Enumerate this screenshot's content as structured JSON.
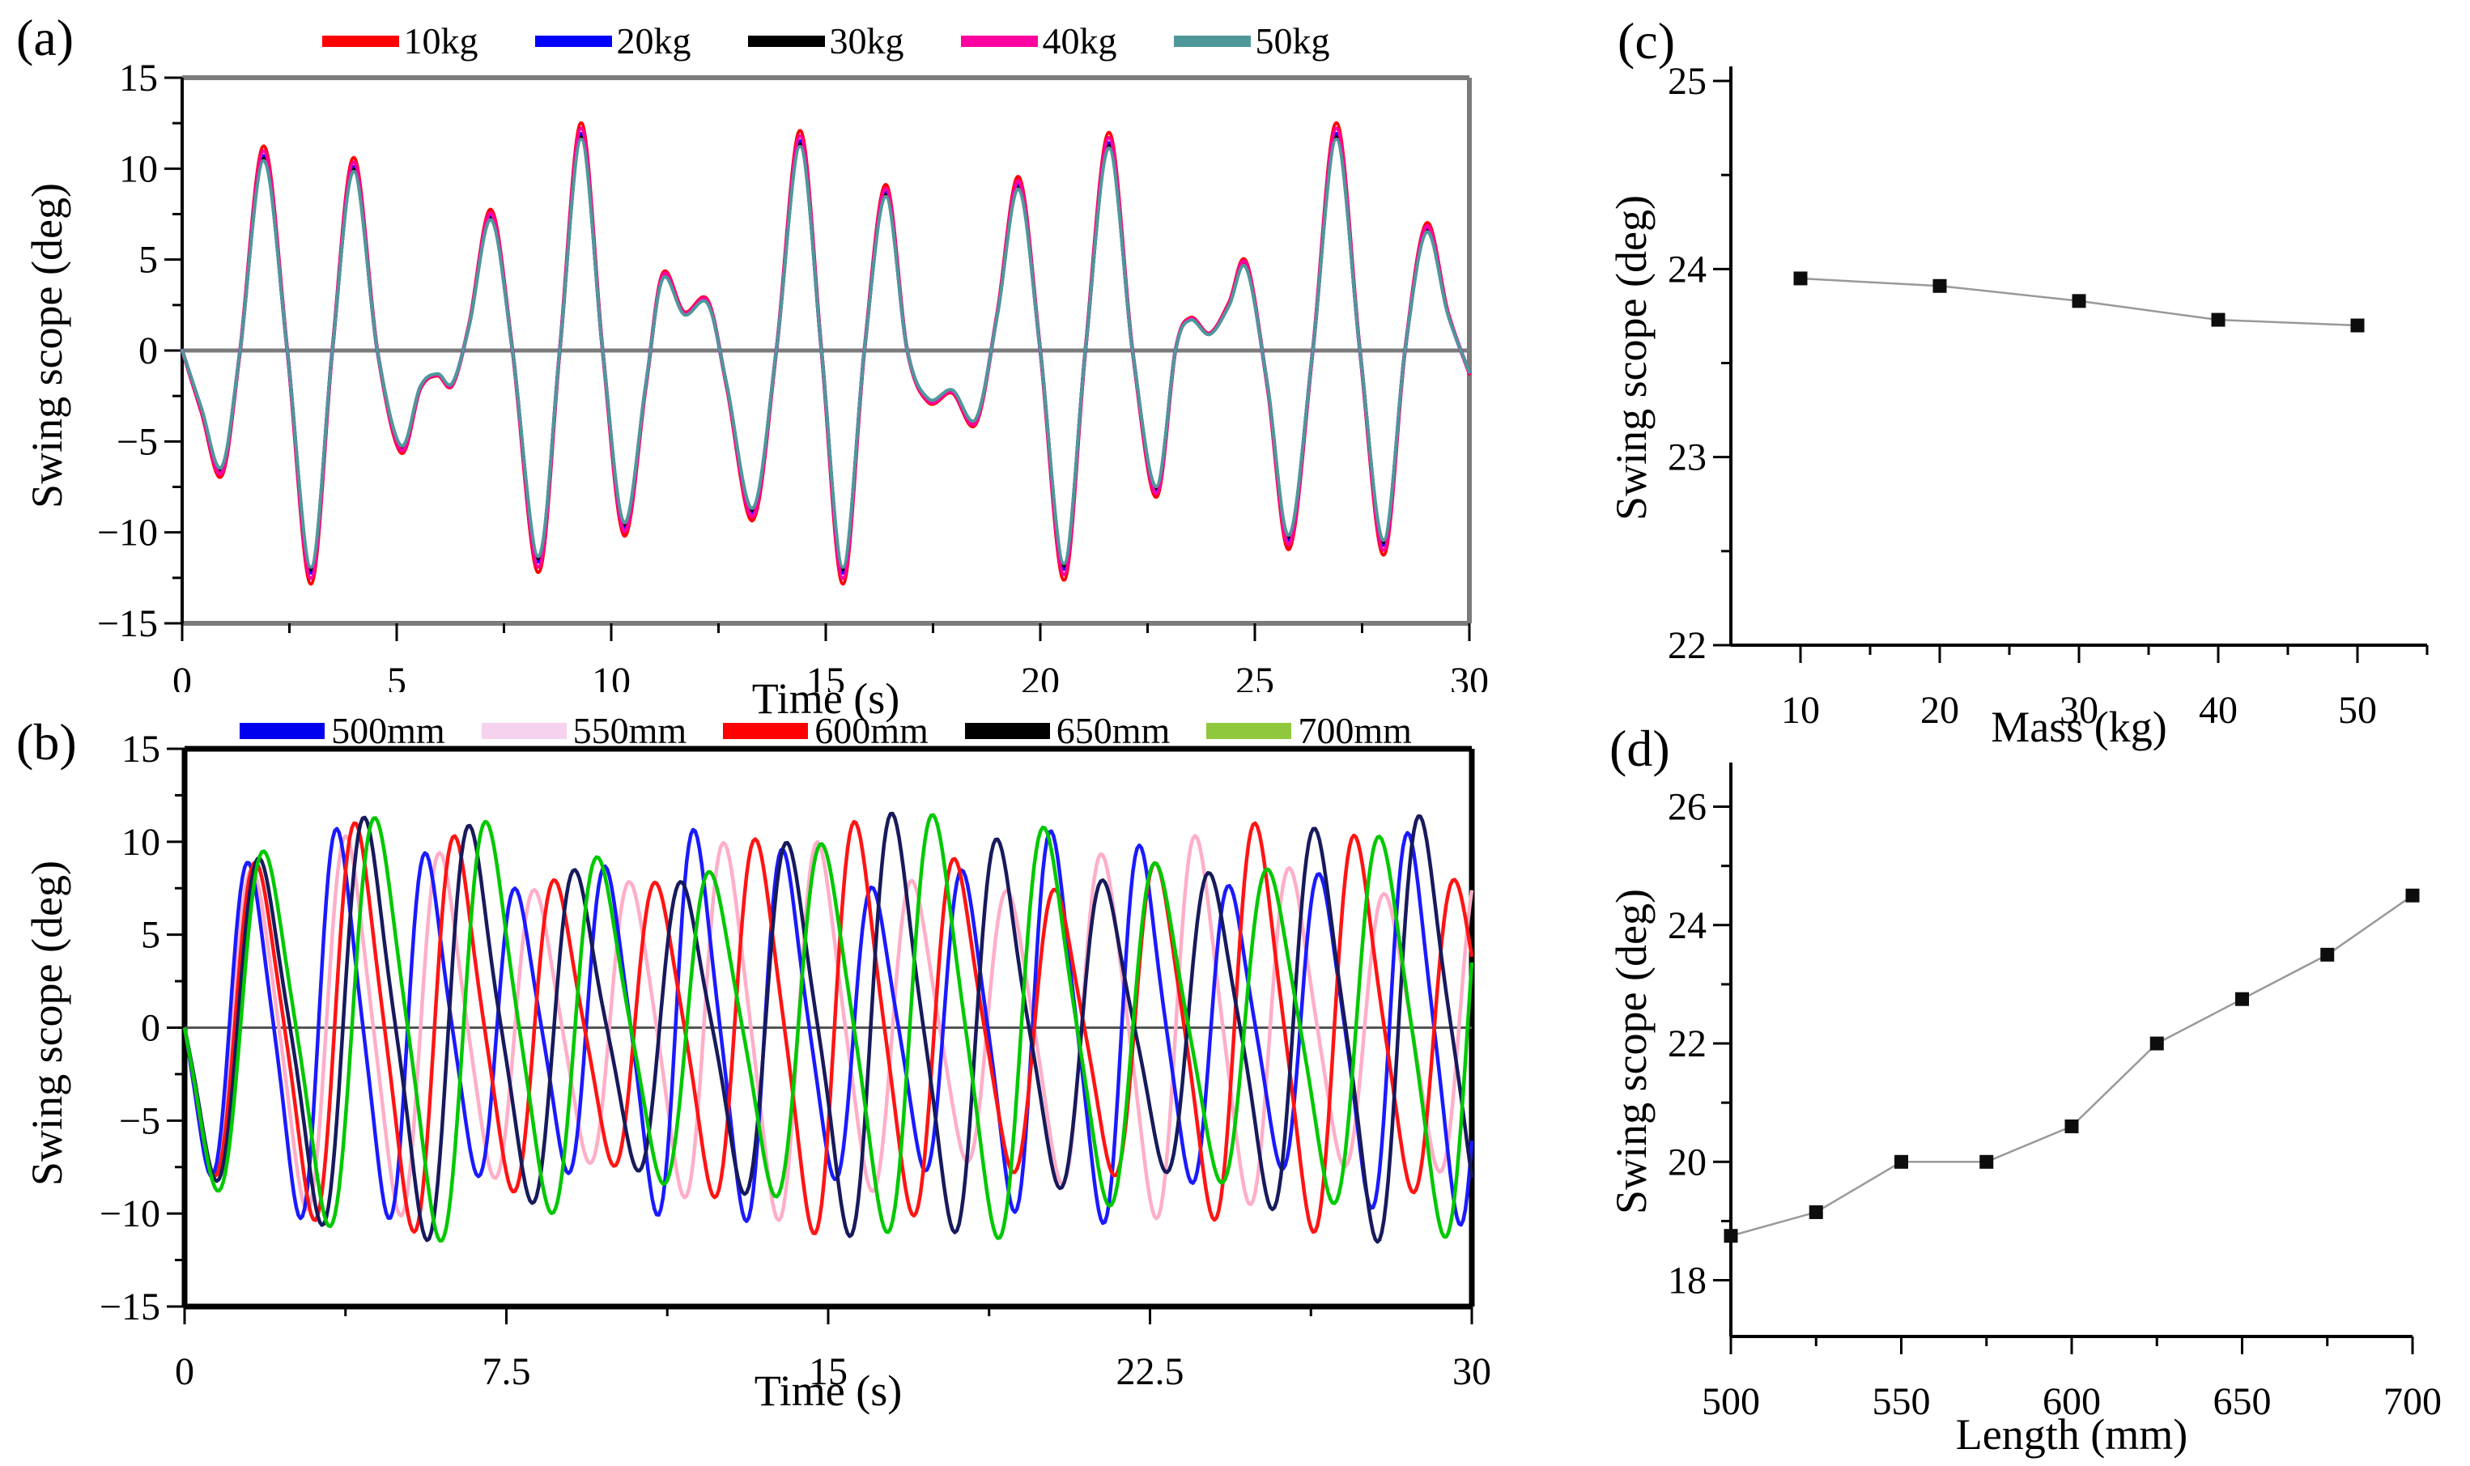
{
  "figure_type": "4-panel pendulum swing simulation figure",
  "chart_data": [
    {
      "id": "a",
      "type": "line",
      "panel_label": "(a)",
      "xlabel": "Time (s)",
      "ylabel": "Swing scope (deg)",
      "xlim": [
        0,
        30
      ],
      "ylim": [
        -15,
        15
      ],
      "grid": false,
      "legend_position": "top",
      "frame": {
        "type": "box",
        "color": "#7b7b7b",
        "width": 6,
        "left_color": "#000000",
        "left_width": 4
      },
      "zero_line": {
        "color": "#7b7b7b",
        "width": 5
      },
      "xticks": [
        {
          "v": 0,
          "l": "0"
        },
        {
          "v": 5,
          "l": "5"
        },
        {
          "v": 10,
          "l": "10"
        },
        {
          "v": 15,
          "l": "15"
        },
        {
          "v": 20,
          "l": "20"
        },
        {
          "v": 25,
          "l": "25"
        },
        {
          "v": 30,
          "l": "30"
        }
      ],
      "xminor": [
        2.5,
        7.5,
        12.5,
        17.5,
        22.5,
        27.5
      ],
      "yticks": [
        {
          "v": 15,
          "l": "15"
        },
        {
          "v": 10,
          "l": "10"
        },
        {
          "v": 5,
          "l": "5"
        },
        {
          "v": 0,
          "l": "0"
        },
        {
          "v": -5,
          "l": "−5"
        },
        {
          "v": -10,
          "l": "−10"
        },
        {
          "v": -15,
          "l": "−15"
        }
      ],
      "yminor": [
        12.5,
        7.5,
        2.5,
        -2.5,
        -7.5,
        -12.5
      ],
      "legend": [
        {
          "label": "10kg",
          "color": "#ff0000"
        },
        {
          "label": "20kg",
          "color": "#0000ff"
        },
        {
          "label": "30kg",
          "color": "#000000"
        },
        {
          "label": "40kg",
          "color": "#ff00a0"
        },
        {
          "label": "50kg",
          "color": "#4f989a"
        }
      ],
      "note": "All five mass curves almost coincide; each series scales the shared waveform slightly.",
      "series": [
        {
          "name": "10kg",
          "color": "#ff0000",
          "scale": 1.06,
          "width": 4.5
        },
        {
          "name": "20kg",
          "color": "#0000ff",
          "scale": 1.01,
          "width": 4.5
        },
        {
          "name": "30kg",
          "color": "#000000",
          "scale": 0.995,
          "width": 4
        },
        {
          "name": "40kg",
          "color": "#ff00a0",
          "scale": 1.035,
          "width": 4.5
        },
        {
          "name": "50kg",
          "color": "#4f989a",
          "scale": 0.985,
          "width": 4
        }
      ],
      "waveform": [
        [
          0,
          0
        ],
        [
          0.45,
          -3.2
        ],
        [
          0.92,
          -6.5
        ],
        [
          1.35,
          0
        ],
        [
          1.9,
          10.6
        ],
        [
          2.45,
          0
        ],
        [
          3.0,
          -12.1
        ],
        [
          3.5,
          0
        ],
        [
          4.0,
          10.0
        ],
        [
          4.55,
          0
        ],
        [
          5.1,
          -5.3
        ],
        [
          5.55,
          -2.0
        ],
        [
          5.95,
          -1.3
        ],
        [
          6.3,
          -1.8
        ],
        [
          6.7,
          1.5
        ],
        [
          7.2,
          7.3
        ],
        [
          7.7,
          0
        ],
        [
          8.3,
          -11.5
        ],
        [
          8.8,
          0
        ],
        [
          9.3,
          11.8
        ],
        [
          9.8,
          0
        ],
        [
          10.3,
          -9.6
        ],
        [
          10.8,
          -2.0
        ],
        [
          11.2,
          4.0
        ],
        [
          11.7,
          2.0
        ],
        [
          12.25,
          2.6
        ],
        [
          12.7,
          -2.0
        ],
        [
          13.3,
          -8.8
        ],
        [
          13.85,
          0
        ],
        [
          14.4,
          11.4
        ],
        [
          14.9,
          0
        ],
        [
          15.4,
          -12.1
        ],
        [
          15.9,
          0
        ],
        [
          16.4,
          8.6
        ],
        [
          16.9,
          0
        ],
        [
          17.4,
          -2.7
        ],
        [
          17.95,
          -2.2
        ],
        [
          18.5,
          -3.8
        ],
        [
          19.0,
          2.0
        ],
        [
          19.5,
          9.0
        ],
        [
          20.0,
          0
        ],
        [
          20.55,
          -11.9
        ],
        [
          21.05,
          0
        ],
        [
          21.6,
          11.3
        ],
        [
          22.15,
          0
        ],
        [
          22.7,
          -7.6
        ],
        [
          23.15,
          0
        ],
        [
          23.5,
          1.7
        ],
        [
          23.95,
          0.9
        ],
        [
          24.4,
          2.5
        ],
        [
          24.8,
          4.6
        ],
        [
          25.3,
          -2.0
        ],
        [
          25.8,
          -10.3
        ],
        [
          26.35,
          0
        ],
        [
          26.9,
          11.8
        ],
        [
          27.45,
          0
        ],
        [
          28.0,
          -10.6
        ],
        [
          28.5,
          0
        ],
        [
          29.0,
          6.6
        ],
        [
          29.5,
          2.0
        ],
        [
          30,
          -1.2
        ]
      ]
    },
    {
      "id": "b",
      "type": "line",
      "panel_label": "(b)",
      "xlabel": "Time (s)",
      "ylabel": "Swing scope (deg)",
      "xlim": [
        0,
        30
      ],
      "ylim": [
        -15,
        15
      ],
      "grid": false,
      "legend_position": "top",
      "frame": {
        "type": "box",
        "color": "#000000",
        "width": 7
      },
      "zero_line": {
        "color": "#555555",
        "width": 3
      },
      "xticks": [
        {
          "v": 0,
          "l": "0"
        },
        {
          "v": 7.5,
          "l": "7.5"
        },
        {
          "v": 15,
          "l": "15"
        },
        {
          "v": 22.5,
          "l": "22.5"
        },
        {
          "v": 30,
          "l": "30"
        }
      ],
      "xminor": [
        3.75,
        11.25,
        18.75,
        26.25
      ],
      "yticks": [
        {
          "v": 15,
          "l": "15"
        },
        {
          "v": 10,
          "l": "10"
        },
        {
          "v": 5,
          "l": "5"
        },
        {
          "v": 0,
          "l": "0"
        },
        {
          "v": -5,
          "l": "−5"
        },
        {
          "v": -10,
          "l": "−10"
        },
        {
          "v": -15,
          "l": "−15"
        }
      ],
      "yminor": [
        12.5,
        7.5,
        2.5,
        -2.5,
        -7.5,
        -12.5
      ],
      "legend": [
        {
          "label": "500mm",
          "color": "#0000ee"
        },
        {
          "label": "550mm",
          "color": "#f6d2ef"
        },
        {
          "label": "600mm",
          "color": "#ff0000"
        },
        {
          "label": "650mm",
          "color": "#000000"
        },
        {
          "label": "700mm",
          "color": "#8fc83c"
        }
      ],
      "note": "Five oscillations of differing period/phase; synthesized as amplitude-modulated sinusoids y=A(1+d sin(2πt/Tm−1.2))(sin(2πt/T+π)+h2 sin(4πt/T)).",
      "series": [
        {
          "name": "550mm",
          "color": "#ffaec8",
          "T": 2.2,
          "A": 8.4,
          "Tm": 9.5,
          "d": 0.18,
          "h2": 0.16,
          "width": 4.5
        },
        {
          "name": "500mm",
          "color": "#1a1aff",
          "T": 2.08,
          "A": 8.6,
          "Tm": 8.5,
          "d": 0.18,
          "h2": 0.18,
          "width": 4.5
        },
        {
          "name": "600mm",
          "color": "#ff1414",
          "T": 2.33,
          "A": 8.8,
          "Tm": 10.5,
          "d": 0.2,
          "h2": 0.18,
          "width": 4.5
        },
        {
          "name": "650mm",
          "color": "#171a5c",
          "T": 2.46,
          "A": 9.0,
          "Tm": 11.5,
          "d": 0.2,
          "h2": 0.2,
          "width": 4.5
        },
        {
          "name": "700mm",
          "color": "#00c800",
          "T": 2.6,
          "A": 9.4,
          "Tm": 12.5,
          "d": 0.16,
          "h2": 0.18,
          "width": 4.5
        }
      ]
    },
    {
      "id": "c",
      "type": "scatter",
      "panel_label": "(c)",
      "xlabel": "Mass (kg)",
      "ylabel": "Swing scope (deg)",
      "xlim": [
        5,
        55
      ],
      "ylim": [
        22,
        25
      ],
      "grid": false,
      "frame": {
        "type": "L",
        "color": "#000000",
        "width": 4
      },
      "marker": {
        "shape": "square",
        "size": 17,
        "color": "#0d0d0d"
      },
      "line": {
        "color": "#999999",
        "width": 2.5
      },
      "xticks": [
        {
          "v": 10,
          "l": "10"
        },
        {
          "v": 20,
          "l": "20"
        },
        {
          "v": 30,
          "l": "30"
        },
        {
          "v": 40,
          "l": "40"
        },
        {
          "v": 50,
          "l": "50"
        }
      ],
      "xminor": [
        15,
        25,
        35,
        45,
        55
      ],
      "yticks": [
        {
          "v": 25,
          "l": "25"
        },
        {
          "v": 24,
          "l": "24"
        },
        {
          "v": 23,
          "l": "23"
        },
        {
          "v": 22,
          "l": "22"
        }
      ],
      "yminor": [
        24.5,
        23.5,
        22.5
      ],
      "x": [
        10,
        20,
        30,
        40,
        50
      ],
      "y": [
        23.95,
        23.91,
        23.83,
        23.73,
        23.7
      ]
    },
    {
      "id": "d",
      "type": "scatter",
      "panel_label": "(d)",
      "xlabel": "Length (mm)",
      "ylabel": "Swing scope (deg)",
      "xlim": [
        500,
        700
      ],
      "ylim": [
        17.05,
        26.5
      ],
      "grid": false,
      "frame": {
        "type": "L",
        "color": "#000000",
        "width": 4
      },
      "marker": {
        "shape": "square",
        "size": 17,
        "color": "#0d0d0d"
      },
      "line": {
        "color": "#999999",
        "width": 2.5
      },
      "xticks": [
        {
          "v": 500,
          "l": "500"
        },
        {
          "v": 550,
          "l": "550"
        },
        {
          "v": 600,
          "l": "600"
        },
        {
          "v": 650,
          "l": "650"
        },
        {
          "v": 700,
          "l": "700"
        }
      ],
      "xminor": [
        525,
        575,
        625,
        675
      ],
      "yticks": [
        {
          "v": 26,
          "l": "26"
        },
        {
          "v": 24,
          "l": "24"
        },
        {
          "v": 22,
          "l": "22"
        },
        {
          "v": 20,
          "l": "20"
        },
        {
          "v": 18,
          "l": "18"
        }
      ],
      "yminor": [
        25,
        23,
        21,
        19
      ],
      "x": [
        500,
        525,
        550,
        575,
        600,
        625,
        650,
        675,
        700
      ],
      "y": [
        18.75,
        19.15,
        20.0,
        20.0,
        20.6,
        22.0,
        22.75,
        23.5,
        24.5
      ]
    }
  ]
}
